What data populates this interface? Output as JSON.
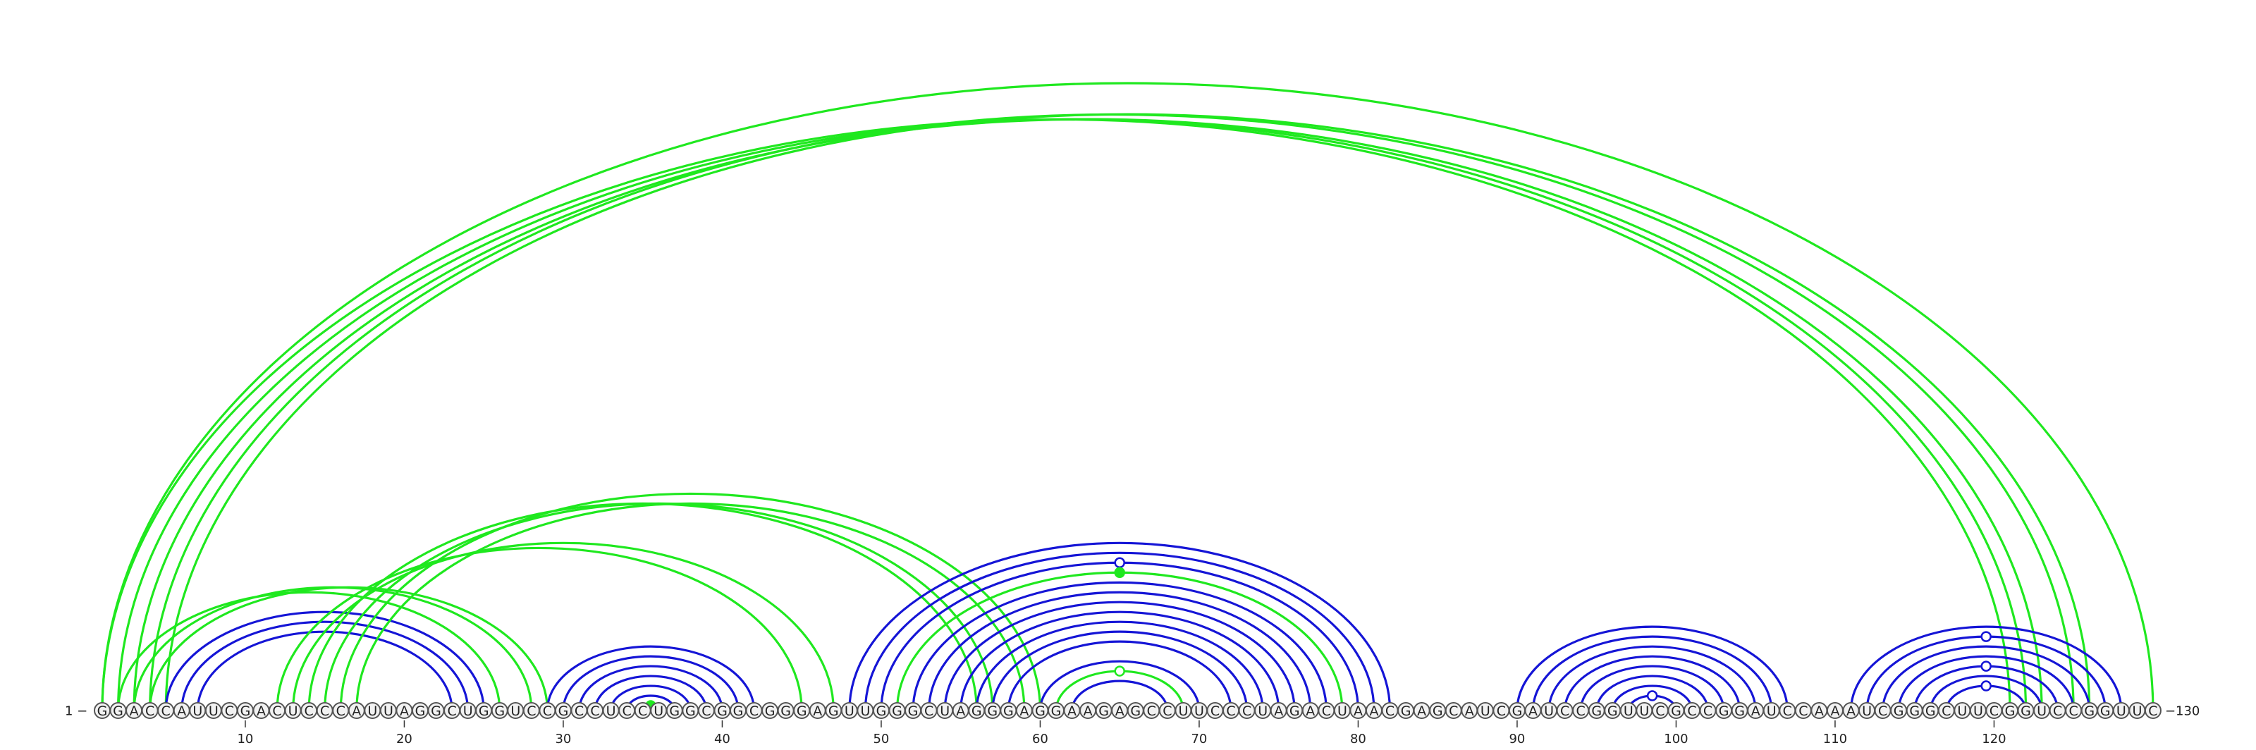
{
  "sequence": {
    "start_label": "1 −",
    "end_label": "−130",
    "letters": "GGACCAUUCGACUCCCAUUAGGCUGGUCCGCCUCCUGGCGGCGGGAGUUGGGCUAGGGAGGAAGAGCCUUCCCUAGACUAACGAGCAUCGAUCCGGUUCGCCGGAUCCAAAUCGGGCUUCGGUCCGGUUC",
    "ticks": [
      10,
      20,
      30,
      40,
      50,
      60,
      70,
      80,
      90,
      100,
      110,
      120
    ]
  },
  "colors": {
    "green": "#1fe81f",
    "blue": "#1515d6"
  },
  "arcs": [
    {
      "i": 1,
      "j": 121,
      "color": "green"
    },
    {
      "i": 1,
      "j": 130,
      "color": "green"
    },
    {
      "i": 2,
      "j": 122,
      "color": "green"
    },
    {
      "i": 3,
      "j": 123,
      "color": "green"
    },
    {
      "i": 4,
      "j": 125,
      "color": "green"
    },
    {
      "i": 5,
      "j": 126,
      "color": "green"
    },
    {
      "i": 2,
      "j": 26,
      "color": "green"
    },
    {
      "i": 3,
      "j": 28,
      "color": "green"
    },
    {
      "i": 4,
      "j": 29,
      "color": "green"
    },
    {
      "i": 5,
      "j": 25,
      "color": "blue"
    },
    {
      "i": 6,
      "j": 24,
      "color": "blue"
    },
    {
      "i": 7,
      "j": 23,
      "color": "blue"
    },
    {
      "i": 12,
      "j": 45,
      "color": "green"
    },
    {
      "i": 13,
      "j": 47,
      "color": "green"
    },
    {
      "i": 14,
      "j": 56,
      "color": "green"
    },
    {
      "i": 15,
      "j": 57,
      "color": "green"
    },
    {
      "i": 16,
      "j": 60,
      "color": "green"
    },
    {
      "i": 17,
      "j": 59,
      "color": "green"
    },
    {
      "i": 29,
      "j": 42,
      "color": "blue"
    },
    {
      "i": 30,
      "j": 41,
      "color": "blue"
    },
    {
      "i": 31,
      "j": 40,
      "color": "blue"
    },
    {
      "i": 32,
      "j": 39,
      "color": "blue"
    },
    {
      "i": 33,
      "j": 38,
      "color": "blue"
    },
    {
      "i": 34,
      "j": 37,
      "color": "blue"
    },
    {
      "i": 35,
      "j": 36,
      "color": "green",
      "marker": "filled"
    },
    {
      "i": 48,
      "j": 82,
      "color": "blue"
    },
    {
      "i": 49,
      "j": 81,
      "color": "blue"
    },
    {
      "i": 50,
      "j": 80,
      "color": "blue",
      "marker": "open"
    },
    {
      "i": 51,
      "j": 79,
      "color": "green",
      "marker": "filled"
    },
    {
      "i": 52,
      "j": 78,
      "color": "blue"
    },
    {
      "i": 53,
      "j": 77,
      "color": "blue"
    },
    {
      "i": 54,
      "j": 76,
      "color": "blue"
    },
    {
      "i": 55,
      "j": 75,
      "color": "blue"
    },
    {
      "i": 56,
      "j": 74,
      "color": "blue"
    },
    {
      "i": 57,
      "j": 73,
      "color": "blue"
    },
    {
      "i": 58,
      "j": 72,
      "color": "blue"
    },
    {
      "i": 60,
      "j": 70,
      "color": "blue"
    },
    {
      "i": 61,
      "j": 69,
      "color": "green",
      "marker": "open"
    },
    {
      "i": 62,
      "j": 68,
      "color": "blue"
    },
    {
      "i": 90,
      "j": 107,
      "color": "blue"
    },
    {
      "i": 91,
      "j": 106,
      "color": "blue"
    },
    {
      "i": 92,
      "j": 105,
      "color": "blue"
    },
    {
      "i": 93,
      "j": 104,
      "color": "blue"
    },
    {
      "i": 94,
      "j": 103,
      "color": "blue"
    },
    {
      "i": 95,
      "j": 102,
      "color": "blue"
    },
    {
      "i": 96,
      "j": 101,
      "color": "blue"
    },
    {
      "i": 97,
      "j": 100,
      "color": "blue",
      "marker": "open"
    },
    {
      "i": 111,
      "j": 128,
      "color": "blue"
    },
    {
      "i": 112,
      "j": 127,
      "color": "blue",
      "marker": "open"
    },
    {
      "i": 113,
      "j": 126,
      "color": "blue"
    },
    {
      "i": 114,
      "j": 125,
      "color": "blue"
    },
    {
      "i": 115,
      "j": 124,
      "color": "blue",
      "marker": "open"
    },
    {
      "i": 116,
      "j": 123,
      "color": "blue"
    },
    {
      "i": 117,
      "j": 122,
      "color": "blue",
      "marker": "open"
    }
  ]
}
